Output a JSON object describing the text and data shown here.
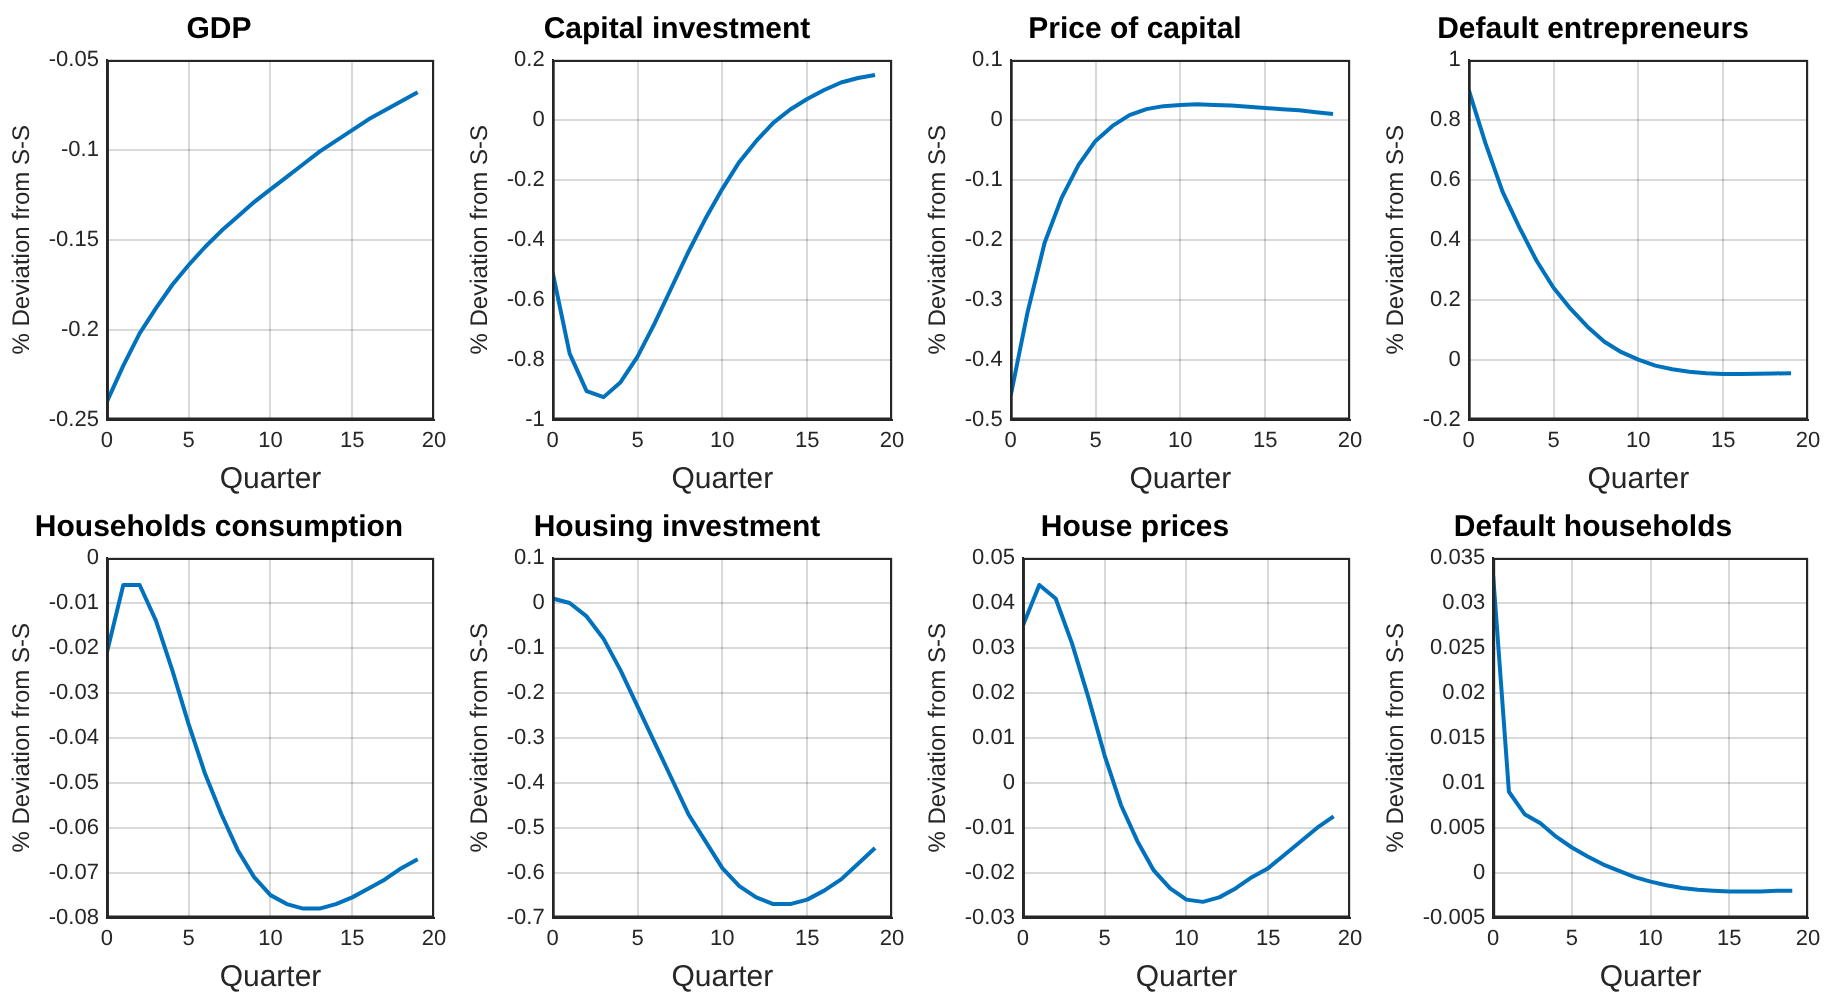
{
  "chart_data": [
    {
      "type": "line",
      "title": "GDP",
      "xlabel": "Quarter",
      "ylabel": "% Deviation from S-S",
      "color": "#0072bd",
      "grid": true,
      "xlim": [
        0,
        20
      ],
      "xticks": [
        0,
        5,
        10,
        15,
        20
      ],
      "ylim": [
        -0.25,
        -0.05
      ],
      "yticks": [
        -0.25,
        -0.2,
        -0.15,
        -0.1,
        -0.05
      ],
      "x": [
        0,
        1,
        2,
        3,
        4,
        5,
        6,
        7,
        8,
        9,
        10,
        11,
        12,
        13,
        14,
        15,
        16,
        17,
        18,
        19
      ],
      "values": [
        -0.24,
        -0.22,
        -0.202,
        -0.188,
        -0.175,
        -0.164,
        -0.154,
        -0.145,
        -0.137,
        -0.129,
        -0.122,
        -0.115,
        -0.108,
        -0.101,
        -0.095,
        -0.089,
        -0.083,
        -0.078,
        -0.073,
        -0.068
      ]
    },
    {
      "type": "line",
      "title": "Capital investment",
      "xlabel": "Quarter",
      "ylabel": "% Deviation from S-S",
      "color": "#0072bd",
      "grid": true,
      "xlim": [
        0,
        20
      ],
      "xticks": [
        0,
        5,
        10,
        15,
        20
      ],
      "ylim": [
        -1,
        0.2
      ],
      "yticks": [
        -1,
        -0.8,
        -0.6,
        -0.4,
        -0.2,
        0,
        0.2
      ],
      "x": [
        0,
        1,
        2,
        3,
        4,
        5,
        6,
        7,
        8,
        9,
        10,
        11,
        12,
        13,
        14,
        15,
        16,
        17,
        18,
        19
      ],
      "values": [
        -0.51,
        -0.78,
        -0.905,
        -0.925,
        -0.875,
        -0.79,
        -0.68,
        -0.56,
        -0.44,
        -0.33,
        -0.23,
        -0.14,
        -0.07,
        -0.01,
        0.035,
        0.07,
        0.1,
        0.125,
        0.14,
        0.15
      ]
    },
    {
      "type": "line",
      "title": "Price of capital",
      "xlabel": "Quarter",
      "ylabel": "% Deviation from S-S",
      "color": "#0072bd",
      "grid": true,
      "xlim": [
        0,
        20
      ],
      "xticks": [
        0,
        5,
        10,
        15,
        20
      ],
      "ylim": [
        -0.5,
        0.1
      ],
      "yticks": [
        -0.5,
        -0.4,
        -0.3,
        -0.2,
        -0.1,
        0,
        0.1
      ],
      "x": [
        0,
        1,
        2,
        3,
        4,
        5,
        6,
        7,
        8,
        9,
        10,
        11,
        12,
        13,
        14,
        15,
        16,
        17,
        18,
        19
      ],
      "values": [
        -0.46,
        -0.32,
        -0.205,
        -0.13,
        -0.075,
        -0.035,
        -0.01,
        0.008,
        0.018,
        0.023,
        0.025,
        0.026,
        0.025,
        0.024,
        0.022,
        0.02,
        0.018,
        0.016,
        0.013,
        0.01
      ]
    },
    {
      "type": "line",
      "title": "Default entrepreneurs",
      "xlabel": "Quarter",
      "ylabel": "% Deviation from S-S",
      "color": "#0072bd",
      "grid": true,
      "xlim": [
        0,
        20
      ],
      "xticks": [
        0,
        5,
        10,
        15,
        20
      ],
      "ylim": [
        -0.2,
        1
      ],
      "yticks": [
        -0.2,
        0,
        0.2,
        0.4,
        0.6,
        0.8,
        1
      ],
      "x": [
        0,
        1,
        2,
        3,
        4,
        5,
        6,
        7,
        8,
        9,
        10,
        11,
        12,
        13,
        14,
        15,
        16,
        17,
        18,
        19
      ],
      "values": [
        0.9,
        0.72,
        0.56,
        0.44,
        0.33,
        0.24,
        0.17,
        0.11,
        0.06,
        0.025,
        0,
        -0.02,
        -0.032,
        -0.04,
        -0.045,
        -0.048,
        -0.048,
        -0.047,
        -0.046,
        -0.045
      ]
    },
    {
      "type": "line",
      "title": "Households consumption",
      "xlabel": "Quarter",
      "ylabel": "% Deviation from S-S",
      "color": "#0072bd",
      "grid": true,
      "xlim": [
        0,
        20
      ],
      "xticks": [
        0,
        5,
        10,
        15,
        20
      ],
      "ylim": [
        -0.08,
        0
      ],
      "yticks": [
        -0.08,
        -0.07,
        -0.06,
        -0.05,
        -0.04,
        -0.03,
        -0.02,
        -0.01,
        0
      ],
      "x": [
        0,
        1,
        2,
        3,
        4,
        5,
        6,
        7,
        8,
        9,
        10,
        11,
        12,
        13,
        14,
        15,
        16,
        17,
        18,
        19
      ],
      "values": [
        -0.021,
        -0.006,
        -0.006,
        -0.014,
        -0.025,
        -0.037,
        -0.048,
        -0.057,
        -0.065,
        -0.071,
        -0.075,
        -0.077,
        -0.078,
        -0.078,
        -0.077,
        -0.0755,
        -0.0735,
        -0.0715,
        -0.069,
        -0.067
      ]
    },
    {
      "type": "line",
      "title": "Housing investment",
      "xlabel": "Quarter",
      "ylabel": "% Deviation from S-S",
      "color": "#0072bd",
      "grid": true,
      "xlim": [
        0,
        20
      ],
      "xticks": [
        0,
        5,
        10,
        15,
        20
      ],
      "ylim": [
        -0.7,
        0.1
      ],
      "yticks": [
        -0.7,
        -0.6,
        -0.5,
        -0.4,
        -0.3,
        -0.2,
        -0.1,
        0,
        0.1
      ],
      "x": [
        0,
        1,
        2,
        3,
        4,
        5,
        6,
        7,
        8,
        9,
        10,
        11,
        12,
        13,
        14,
        15,
        16,
        17,
        18,
        19
      ],
      "values": [
        0.01,
        0,
        -0.03,
        -0.08,
        -0.15,
        -0.23,
        -0.31,
        -0.39,
        -0.47,
        -0.53,
        -0.59,
        -0.63,
        -0.655,
        -0.67,
        -0.67,
        -0.66,
        -0.64,
        -0.615,
        -0.58,
        -0.545
      ]
    },
    {
      "type": "line",
      "title": "House prices",
      "xlabel": "Quarter",
      "ylabel": "% Deviation from S-S",
      "color": "#0072bd",
      "grid": true,
      "xlim": [
        0,
        20
      ],
      "xticks": [
        0,
        5,
        10,
        15,
        20
      ],
      "ylim": [
        -0.03,
        0.05
      ],
      "yticks": [
        -0.03,
        -0.02,
        -0.01,
        0,
        0.01,
        0.02,
        0.03,
        0.04,
        0.05
      ],
      "x": [
        0,
        1,
        2,
        3,
        4,
        5,
        6,
        7,
        8,
        9,
        10,
        11,
        12,
        13,
        14,
        15,
        16,
        17,
        18,
        19
      ],
      "values": [
        0.035,
        0.044,
        0.041,
        0.031,
        0.019,
        0.006,
        -0.005,
        -0.013,
        -0.0195,
        -0.0235,
        -0.026,
        -0.0265,
        -0.0255,
        -0.0235,
        -0.021,
        -0.019,
        -0.016,
        -0.013,
        -0.01,
        -0.0075
      ]
    },
    {
      "type": "line",
      "title": "Default households",
      "xlabel": "Quarter",
      "ylabel": "% Deviation from S-S",
      "color": "#0072bd",
      "grid": true,
      "xlim": [
        0,
        20
      ],
      "xticks": [
        0,
        5,
        10,
        15,
        20
      ],
      "ylim": [
        -0.005,
        0.035
      ],
      "yticks": [
        -0.005,
        0,
        0.005,
        0.01,
        0.015,
        0.02,
        0.025,
        0.03,
        0.035
      ],
      "x": [
        0,
        1,
        2,
        3,
        4,
        5,
        6,
        7,
        8,
        9,
        10,
        11,
        12,
        13,
        14,
        15,
        16,
        17,
        18,
        19
      ],
      "values": [
        0.033,
        0.009,
        0.0065,
        0.0055,
        0.004,
        0.0028,
        0.0018,
        0.0009,
        0.0002,
        -0.0005,
        -0.001,
        -0.0014,
        -0.0017,
        -0.0019,
        -0.002,
        -0.0021,
        -0.0021,
        -0.0021,
        -0.002,
        -0.002
      ]
    }
  ]
}
